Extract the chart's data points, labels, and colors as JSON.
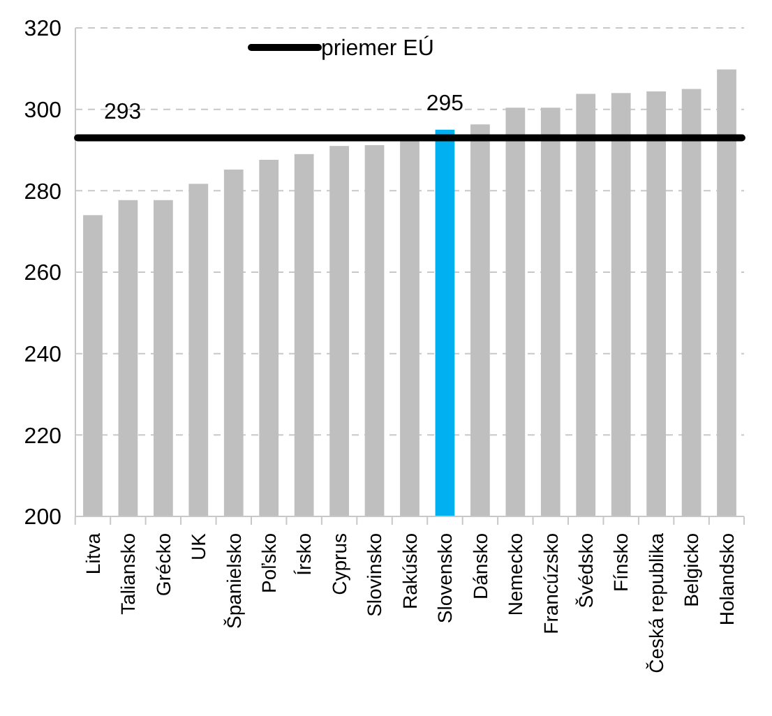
{
  "chart_data": {
    "type": "bar",
    "categories": [
      "Litva",
      "Taliansko",
      "Grécko",
      "UK",
      "Španielsko",
      "Poľsko",
      "Írsko",
      "Cyprus",
      "Slovinsko",
      "Rakúsko",
      "Slovensko",
      "Dánsko",
      "Nemecko",
      "Francúzsko",
      "Švédsko",
      "Fínsko",
      "Česká republika",
      "Belgicko",
      "Holandsko"
    ],
    "values": [
      274,
      277.7,
      277.7,
      281.7,
      285.2,
      287.6,
      289,
      291,
      291.2,
      293,
      295,
      296.3,
      300.4,
      300.4,
      303.8,
      304,
      304.4,
      305,
      309.8
    ],
    "colors": [
      "#bfbfbf",
      "#bfbfbf",
      "#bfbfbf",
      "#bfbfbf",
      "#bfbfbf",
      "#bfbfbf",
      "#bfbfbf",
      "#bfbfbf",
      "#bfbfbf",
      "#bfbfbf",
      "#00b0f0",
      "#bfbfbf",
      "#bfbfbf",
      "#bfbfbf",
      "#bfbfbf",
      "#bfbfbf",
      "#bfbfbf",
      "#bfbfbf",
      "#bfbfbf"
    ],
    "value_labels": [
      null,
      null,
      null,
      null,
      null,
      null,
      null,
      null,
      null,
      null,
      "295",
      null,
      null,
      null,
      null,
      null,
      null,
      null,
      null
    ],
    "ylim": [
      200,
      320
    ],
    "yticks": [
      200,
      220,
      240,
      260,
      280,
      300,
      320
    ],
    "grid": "y",
    "ref_lines": [
      {
        "axis": "y",
        "value": 293,
        "label": "priemer EÚ",
        "color": "#000000"
      }
    ],
    "annotations": [
      {
        "text": "293",
        "x": "Litva",
        "y": 293
      }
    ],
    "legend": "top"
  }
}
